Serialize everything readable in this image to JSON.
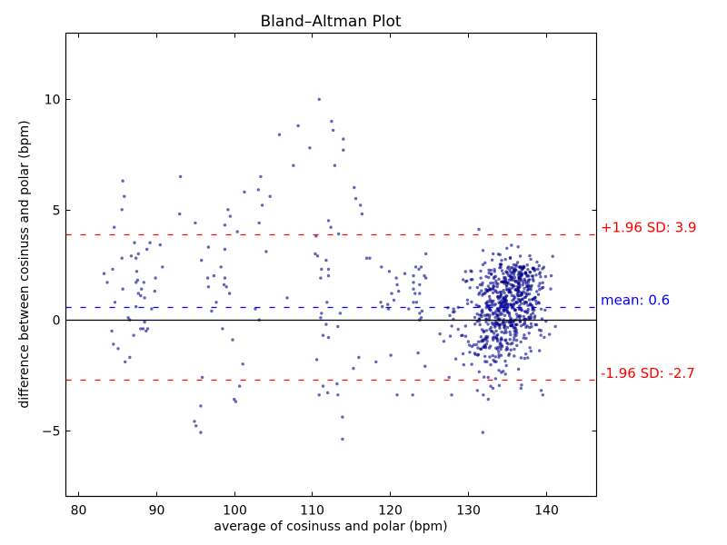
{
  "chart_data": {
    "type": "scatter",
    "title": "Bland–Altman Plot",
    "xlabel": "average of cosinuss and polar (bpm)",
    "ylabel": "difference between cosinuss and polar (bpm)",
    "xlim": [
      78.4,
      146.5
    ],
    "ylim": [
      -8,
      13
    ],
    "xticks": [
      80,
      90,
      100,
      110,
      120,
      130,
      140
    ],
    "yticks": [
      -5,
      0,
      5,
      10
    ],
    "xtick_labels": [
      "80",
      "90",
      "100",
      "110",
      "120",
      "130",
      "140"
    ],
    "ytick_labels": [
      "−5",
      "0",
      "5",
      "10"
    ],
    "grid": false,
    "legend": null,
    "point_color": "#00008b",
    "point_alpha": 0.6,
    "reference_lines": [
      {
        "name": "zero",
        "y": 0,
        "color": "#000000",
        "style": "solid",
        "label": ""
      },
      {
        "name": "mean",
        "y": 0.6,
        "color": "#0000ff",
        "style": "dashed",
        "label": "mean: 0.6"
      },
      {
        "name": "upper-loa",
        "y": 3.9,
        "color": "#ff0000",
        "style": "dashed",
        "label": "+1.96 SD: 3.9"
      },
      {
        "name": "lower-loa",
        "y": -2.7,
        "color": "#ff0000",
        "style": "dashed",
        "label": "-1.96 SD: -2.7"
      }
    ],
    "annotations": [
      {
        "text": "+1.96 SD: 3.9",
        "y": 3.9,
        "color": "#ff0000"
      },
      {
        "text": "mean: 0.6",
        "y": 0.6,
        "color": "#0000ff"
      },
      {
        "text": "-1.96 SD: -2.7",
        "y": -2.7,
        "color": "#ff0000"
      }
    ],
    "statistics": {
      "mean_difference": 0.6,
      "upper_limit": 3.9,
      "lower_limit": -2.7
    },
    "points_sparse": [
      [
        85.7,
        6.3
      ],
      [
        85.9,
        5.6
      ],
      [
        85.6,
        5.0
      ],
      [
        84.6,
        4.2
      ],
      [
        87.2,
        3.5
      ],
      [
        89.2,
        3.5
      ],
      [
        90.5,
        3.4
      ],
      [
        88.8,
        3.2
      ],
      [
        87.7,
        3.0
      ],
      [
        86.8,
        2.9
      ],
      [
        85.6,
        2.8
      ],
      [
        87.4,
        2.8
      ],
      [
        90.8,
        2.4
      ],
      [
        84.4,
        2.3
      ],
      [
        83.3,
        2.1
      ],
      [
        87.5,
        2.2
      ],
      [
        89.9,
        1.9
      ],
      [
        87.6,
        1.8
      ],
      [
        87.4,
        1.7
      ],
      [
        88.4,
        1.7
      ],
      [
        83.7,
        1.7
      ],
      [
        88.1,
        1.4
      ],
      [
        85.7,
        1.4
      ],
      [
        89.8,
        1.3
      ],
      [
        87.7,
        1.2
      ],
      [
        88.0,
        1.1
      ],
      [
        88.5,
        1.0
      ],
      [
        84.7,
        0.8
      ],
      [
        87.4,
        0.6
      ],
      [
        89.4,
        0.5
      ],
      [
        86.4,
        0.1
      ],
      [
        86.6,
        0.0
      ],
      [
        88.5,
        -0.1
      ],
      [
        88.0,
        -0.4
      ],
      [
        88.3,
        -0.4
      ],
      [
        88.9,
        -0.4
      ],
      [
        88.7,
        -0.5
      ],
      [
        84.3,
        -0.5
      ],
      [
        87.1,
        -0.7
      ],
      [
        84.5,
        -1.1
      ],
      [
        85.1,
        -1.3
      ],
      [
        86.6,
        -1.7
      ],
      [
        86.0,
        -1.9
      ],
      [
        93.1,
        6.5
      ],
      [
        93.0,
        4.8
      ],
      [
        95.0,
        4.4
      ],
      [
        99.2,
        5.0
      ],
      [
        99.5,
        4.7
      ],
      [
        98.8,
        4.3
      ],
      [
        100.4,
        4.0
      ],
      [
        101.3,
        5.8
      ],
      [
        103.1,
        5.9
      ],
      [
        103.4,
        6.5
      ],
      [
        103.6,
        5.2
      ],
      [
        104.6,
        5.6
      ],
      [
        103.2,
        4.4
      ],
      [
        96.7,
        3.3
      ],
      [
        98.8,
        3.2
      ],
      [
        104.1,
        3.1
      ],
      [
        95.8,
        2.7
      ],
      [
        98.3,
        2.4
      ],
      [
        97.4,
        2.0
      ],
      [
        96.6,
        1.9
      ],
      [
        98.8,
        1.9
      ],
      [
        96.7,
        1.5
      ],
      [
        98.7,
        1.6
      ],
      [
        99.0,
        1.5
      ],
      [
        99.4,
        1.2
      ],
      [
        97.7,
        0.8
      ],
      [
        97.1,
        0.4
      ],
      [
        102.7,
        0.5
      ],
      [
        103.2,
        0.0
      ],
      [
        98.5,
        -0.4
      ],
      [
        99.8,
        -0.9
      ],
      [
        101.1,
        -2.0
      ],
      [
        95.9,
        -2.6
      ],
      [
        100.7,
        -3.0
      ],
      [
        95.7,
        -3.9
      ],
      [
        100.0,
        -3.6
      ],
      [
        100.2,
        -3.7
      ],
      [
        94.9,
        -4.6
      ],
      [
        95.1,
        -4.8
      ],
      [
        95.7,
        -5.1
      ],
      [
        110.9,
        10.0
      ],
      [
        108.2,
        8.8
      ],
      [
        105.8,
        8.4
      ],
      [
        112.5,
        9.0
      ],
      [
        112.7,
        8.6
      ],
      [
        114.0,
        8.2
      ],
      [
        109.7,
        7.8
      ],
      [
        114.0,
        7.7
      ],
      [
        107.6,
        7.0
      ],
      [
        112.9,
        7.0
      ],
      [
        115.4,
        6.0
      ],
      [
        115.6,
        5.5
      ],
      [
        116.2,
        5.2
      ],
      [
        116.4,
        4.8
      ],
      [
        112.1,
        4.5
      ],
      [
        112.4,
        4.2
      ],
      [
        110.5,
        3.8
      ],
      [
        113.4,
        3.9
      ],
      [
        110.4,
        3.0
      ],
      [
        110.7,
        2.9
      ],
      [
        111.8,
        2.7
      ],
      [
        117.0,
        2.8
      ],
      [
        117.4,
        2.8
      ],
      [
        111.2,
        2.3
      ],
      [
        112.1,
        2.3
      ],
      [
        111.1,
        1.9
      ],
      [
        112.1,
        2.0
      ],
      [
        106.8,
        1.0
      ],
      [
        111.9,
        0.8
      ],
      [
        118.8,
        0.8
      ],
      [
        111.2,
        0.3
      ],
      [
        111.1,
        0.1
      ],
      [
        113.6,
        0.3
      ],
      [
        111.8,
        -0.2
      ],
      [
        113.3,
        -0.3
      ],
      [
        111.4,
        -0.7
      ],
      [
        112.1,
        -0.8
      ],
      [
        110.6,
        -1.8
      ],
      [
        116.0,
        -1.7
      ],
      [
        118.2,
        -1.9
      ],
      [
        115.3,
        -2.2
      ],
      [
        111.4,
        -3.0
      ],
      [
        113.2,
        -2.9
      ],
      [
        110.9,
        -3.4
      ],
      [
        112.0,
        -3.3
      ],
      [
        113.3,
        -3.4
      ],
      [
        113.9,
        -4.4
      ],
      [
        113.9,
        -5.4
      ],
      [
        124.6,
        3.0
      ],
      [
        118.9,
        2.4
      ],
      [
        119.9,
        2.2
      ],
      [
        121.9,
        2.1
      ],
      [
        123.3,
        2.4
      ],
      [
        123.7,
        2.3
      ],
      [
        124.0,
        2.4
      ],
      [
        124.4,
        2.0
      ],
      [
        124.6,
        1.9
      ],
      [
        120.8,
        1.9
      ],
      [
        123.0,
        2.0
      ],
      [
        120.9,
        1.6
      ],
      [
        123.0,
        1.7
      ],
      [
        123.8,
        1.6
      ],
      [
        121.1,
        1.3
      ],
      [
        123.0,
        1.4
      ],
      [
        123.2,
        1.2
      ],
      [
        123.8,
        1.2
      ],
      [
        120.2,
        1.2
      ],
      [
        120.5,
        0.9
      ],
      [
        123.0,
        0.8
      ],
      [
        123.4,
        0.8
      ],
      [
        119.0,
        0.6
      ],
      [
        119.7,
        0.7
      ],
      [
        119.8,
        0.5
      ],
      [
        122.4,
        0.5
      ],
      [
        124.1,
        0.4
      ],
      [
        123.8,
        0.3
      ],
      [
        124.0,
        0.1
      ],
      [
        123.8,
        0.0
      ],
      [
        120.1,
        -1.6
      ],
      [
        123.6,
        -1.5
      ],
      [
        124.5,
        -2.1
      ],
      [
        120.9,
        -3.4
      ],
      [
        122.9,
        -3.4
      ],
      [
        127.9,
        -3.4
      ],
      [
        131.2,
        -3.2
      ],
      [
        133.2,
        -3.1
      ],
      [
        132.6,
        -3.6
      ],
      [
        136.8,
        -3.1
      ],
      [
        139.4,
        -3.2
      ],
      [
        139.6,
        -3.4
      ],
      [
        131.9,
        -5.1
      ],
      [
        131.4,
        4.1
      ]
    ],
    "dense_cluster": {
      "description": "approx. 700 overlapping points",
      "count": 700,
      "x_mean": 134.6,
      "x_sd": 3.1,
      "x_range": [
        126.3,
        141.5
      ],
      "y_mean": 0.45,
      "y_sd": 1.2,
      "y_range": [
        -3.4,
        3.5
      ],
      "hotspots": [
        {
          "x": 136.0,
          "y": 1.0,
          "sx": 1.6,
          "sy": 0.9,
          "count": 160
        },
        {
          "x": 136.8,
          "y": 2.1,
          "sx": 1.4,
          "sy": 0.35,
          "count": 70
        },
        {
          "x": 133.5,
          "y": -0.9,
          "sx": 1.5,
          "sy": 0.8,
          "count": 90
        }
      ]
    }
  }
}
